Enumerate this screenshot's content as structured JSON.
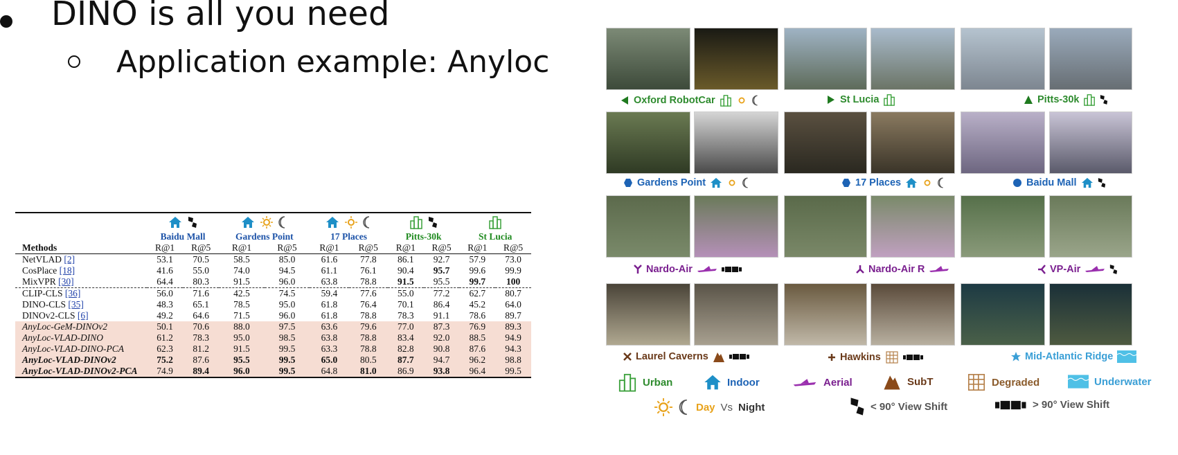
{
  "slide": {
    "bullet1": "DINO is all you need",
    "bullet2": "Application example: Anyloc"
  },
  "table": {
    "datasets": [
      "Baidu Mall",
      "Gardens Point",
      "17 Places",
      "Pitts-30k",
      "St Lucia"
    ],
    "methods_header": "Methods",
    "metrics": [
      "R@1",
      "R@5"
    ],
    "rows": [
      {
        "name": "NetVLAD",
        "ref": "[2]",
        "vals": [
          "53.1",
          "70.5",
          "58.5",
          "85.0",
          "61.6",
          "77.8",
          "86.1",
          "92.7",
          "57.9",
          "73.0"
        ]
      },
      {
        "name": "CosPlace",
        "ref": "[18]",
        "vals": [
          "41.6",
          "55.0",
          "74.0",
          "94.5",
          "61.1",
          "76.1",
          "90.4",
          "95.7",
          "99.6",
          "99.9"
        ]
      },
      {
        "name": "MixVPR",
        "ref": "[30]",
        "vals": [
          "64.4",
          "80.3",
          "91.5",
          "96.0",
          "63.8",
          "78.8",
          "91.5",
          "95.5",
          "99.7",
          "100"
        ]
      },
      {
        "name": "CLIP-CLS",
        "ref": "[36]",
        "vals": [
          "56.0",
          "71.6",
          "42.5",
          "74.5",
          "59.4",
          "77.6",
          "55.0",
          "77.2",
          "62.7",
          "80.7"
        ]
      },
      {
        "name": "DINO-CLS",
        "ref": "[35]",
        "vals": [
          "48.3",
          "65.1",
          "78.5",
          "95.0",
          "61.8",
          "76.4",
          "70.1",
          "86.4",
          "45.2",
          "64.0"
        ]
      },
      {
        "name": "DINOv2-CLS",
        "ref": "[6]",
        "vals": [
          "49.2",
          "64.6",
          "71.5",
          "96.0",
          "61.8",
          "78.8",
          "78.3",
          "91.1",
          "78.6",
          "89.7"
        ]
      },
      {
        "name": "AnyLoc-GeM-DINOv2",
        "ref": "",
        "vals": [
          "50.1",
          "70.6",
          "88.0",
          "97.5",
          "63.6",
          "79.6",
          "77.0",
          "87.3",
          "76.9",
          "89.3"
        ]
      },
      {
        "name": "AnyLoc-VLAD-DINO",
        "ref": "",
        "vals": [
          "61.2",
          "78.3",
          "95.0",
          "98.5",
          "63.8",
          "78.8",
          "83.4",
          "92.0",
          "88.5",
          "94.9"
        ]
      },
      {
        "name": "AnyLoc-VLAD-DINO-PCA",
        "ref": "",
        "vals": [
          "62.3",
          "81.2",
          "91.5",
          "99.5",
          "63.3",
          "78.8",
          "82.8",
          "90.8",
          "87.6",
          "94.3"
        ]
      },
      {
        "name": "AnyLoc-VLAD-DINOv2",
        "ref": "",
        "vals": [
          "75.2",
          "87.6",
          "95.5",
          "99.5",
          "65.0",
          "80.5",
          "87.7",
          "94.7",
          "96.2",
          "98.8"
        ]
      },
      {
        "name": "AnyLoc-VLAD-DINOv2-PCA",
        "ref": "",
        "vals": [
          "74.9",
          "89.4",
          "96.0",
          "99.5",
          "64.8",
          "81.0",
          "86.9",
          "93.8",
          "96.4",
          "99.5"
        ]
      }
    ]
  },
  "figure": {
    "captions": [
      "Oxford RobotCar",
      "St Lucia",
      "Pitts-30k",
      "Gardens Point",
      "17 Places",
      "Baidu Mall",
      "Nardo-Air",
      "Nardo-Air R",
      "VP-Air",
      "Laurel Caverns",
      "Hawkins",
      "Mid-Atlantic Ridge"
    ],
    "legend": {
      "urban": "Urban",
      "indoor": "Indoor",
      "aerial": "Aerial",
      "subt": "SubT",
      "degraded": "Degraded",
      "underwater": "Underwater",
      "day": "Day",
      "vs": "Vs",
      "night": "Night",
      "small_shift": "< 90° View Shift",
      "large_shift": "> 90° View Shift"
    },
    "colors": {
      "outdoor": "#2e8b2e",
      "indoor": "#1d63b5",
      "aerial": "#7a1f8f",
      "subt": "#6a3a1a",
      "underwater": "#3a9fd6",
      "highlight": "#f6ddd3"
    }
  }
}
